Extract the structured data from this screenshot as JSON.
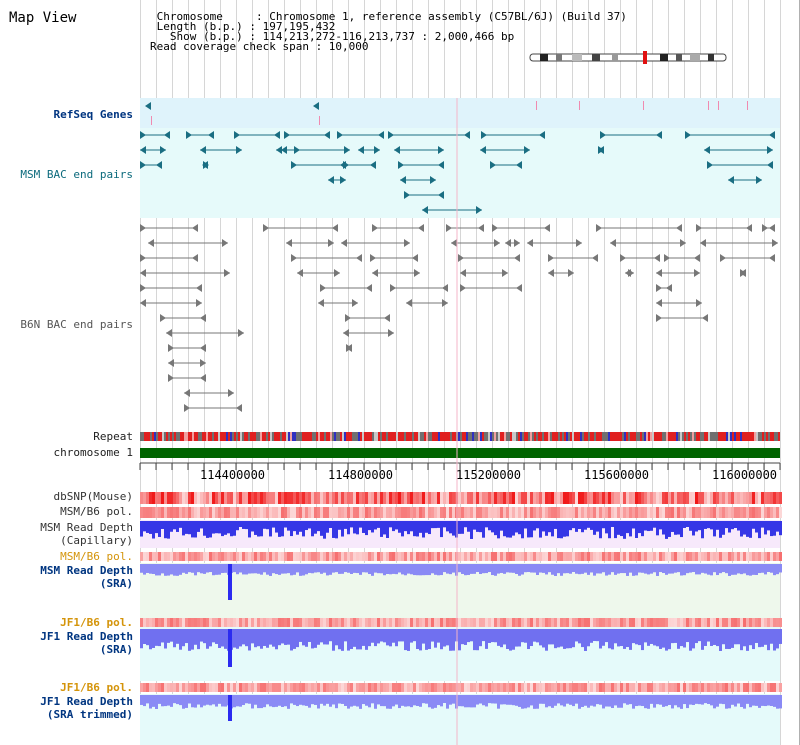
{
  "header": {
    "title": "Map View",
    "info_lines": [
      " Chromosome     : Chromosome 1, reference assembly (C57BL/6J) (Build 37)",
      " Length (b.p.) : 197,195,432",
      "   Show (b.p.) : 114,213,272-116,213,737 : 2,000,466 bp",
      "Read coverage check span : 10,000"
    ]
  },
  "tracks": {
    "refseq": "RefSeq Genes",
    "msm_bac": "MSM BAC end pairs",
    "b6n_bac": "B6N BAC end pairs",
    "repeat": "Repeat",
    "chromosome": "chromosome 1",
    "dbsnp": "dbSNP(Mouse)",
    "msm_b6_pol": "MSM/B6 pol.",
    "msm_read_depth_cap_1": "MSM Read Depth",
    "msm_read_depth_cap_2": "(Capillary)",
    "msm_b6_pol_2": "MSM/B6 pol.",
    "msm_read_depth_sra_1": "MSM Read Depth",
    "msm_read_depth_sra_2": "(SRA)",
    "jf1_b6_pol": "JF1/B6 pol.",
    "jf1_read_depth_sra_1": "JF1 Read Depth",
    "jf1_read_depth_sra_2": "(SRA)",
    "jf1_b6_pol_2": "JF1/B6 pol.",
    "jf1_read_depth_trim_1": "JF1 Read Depth",
    "jf1_read_depth_trim_2": "(SRA trimmed)"
  },
  "axis": {
    "ticks": [
      "114400000",
      "114800000",
      "115200000",
      "115600000",
      "116000000"
    ]
  },
  "colors": {
    "refseq_band": "#dff3fb",
    "msm_bac_band": "#e6fafa",
    "msm_bac_feature": "#1a6e82",
    "b6n_feature": "#777777",
    "chromosome_bar": "#006400",
    "label_dark_blue": "#003580",
    "label_orange": "#d4940a",
    "label_teal": "#0b6a7c",
    "depth_blue": "#2b2bf0",
    "depth_light": "#8a8af5",
    "snp_red": "#e83030"
  }
}
